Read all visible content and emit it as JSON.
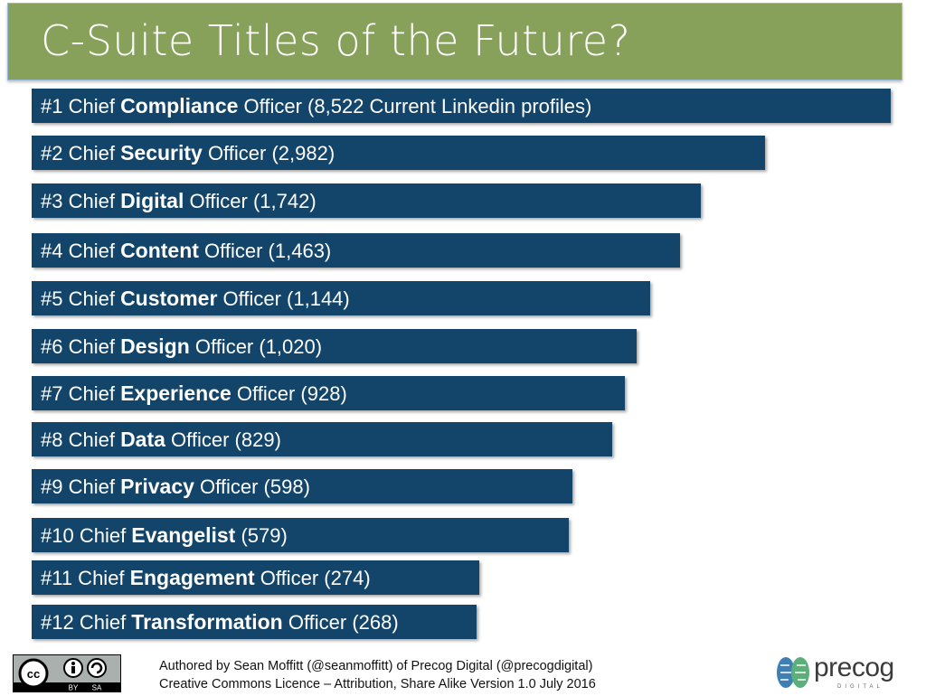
{
  "header": {
    "title": "C-Suite Titles of the Future?"
  },
  "chart_data": {
    "type": "bar",
    "orientation": "horizontal",
    "scale": "log",
    "items": [
      {
        "prefix": "#1 Chief ",
        "keyword": "Compliance",
        "suffix": " Officer (8,522 Current Linkedin profiles)",
        "value": 8522
      },
      {
        "prefix": "#2 Chief ",
        "keyword": "Security",
        "suffix": " Officer (2,982)",
        "value": 2982
      },
      {
        "prefix": "#3 Chief ",
        "keyword": "Digital",
        "suffix": " Officer (1,742)",
        "value": 1742
      },
      {
        "prefix": "#4 Chief ",
        "keyword": "Content",
        "suffix": " Officer (1,463)",
        "value": 1463
      },
      {
        "prefix": "#5 Chief ",
        "keyword": "Customer",
        "suffix": " Officer (1,144)",
        "value": 1144
      },
      {
        "prefix": "#6 Chief ",
        "keyword": "Design",
        "suffix": " Officer (1,020)",
        "value": 1020
      },
      {
        "prefix": "#7 Chief ",
        "keyword": "Experience",
        "suffix": " Officer (928)",
        "value": 928
      },
      {
        "prefix": "#8 Chief ",
        "keyword": "Data",
        "suffix": " Officer (829)",
        "value": 829
      },
      {
        "prefix": "#9 Chief ",
        "keyword": "Privacy",
        "suffix": " Officer (598)",
        "value": 598
      },
      {
        "prefix": "#10 Chief ",
        "keyword": "Evangelist",
        "suffix": " (579)",
        "value": 579
      },
      {
        "prefix": "#11 Chief ",
        "keyword": "Engagement",
        "suffix": " Officer (274)",
        "value": 274
      },
      {
        "prefix": "#12 Chief ",
        "keyword": "Transformation",
        "suffix": " Officer (268)",
        "value": 268
      }
    ],
    "colors": {
      "bar": "#134469",
      "header": "#87a05a"
    }
  },
  "footer": {
    "line1": "Authored by Sean Moffitt (@seanmoffitt) of Precog Digital (@precogdigital)",
    "line2": "Creative Commons Licence – Attribution, Share Alike Version 1.0  July 2016",
    "cc_badge": {
      "by": "BY",
      "sa": "SA"
    },
    "logo": {
      "word": "precog",
      "sub": "DIGITAL"
    }
  }
}
